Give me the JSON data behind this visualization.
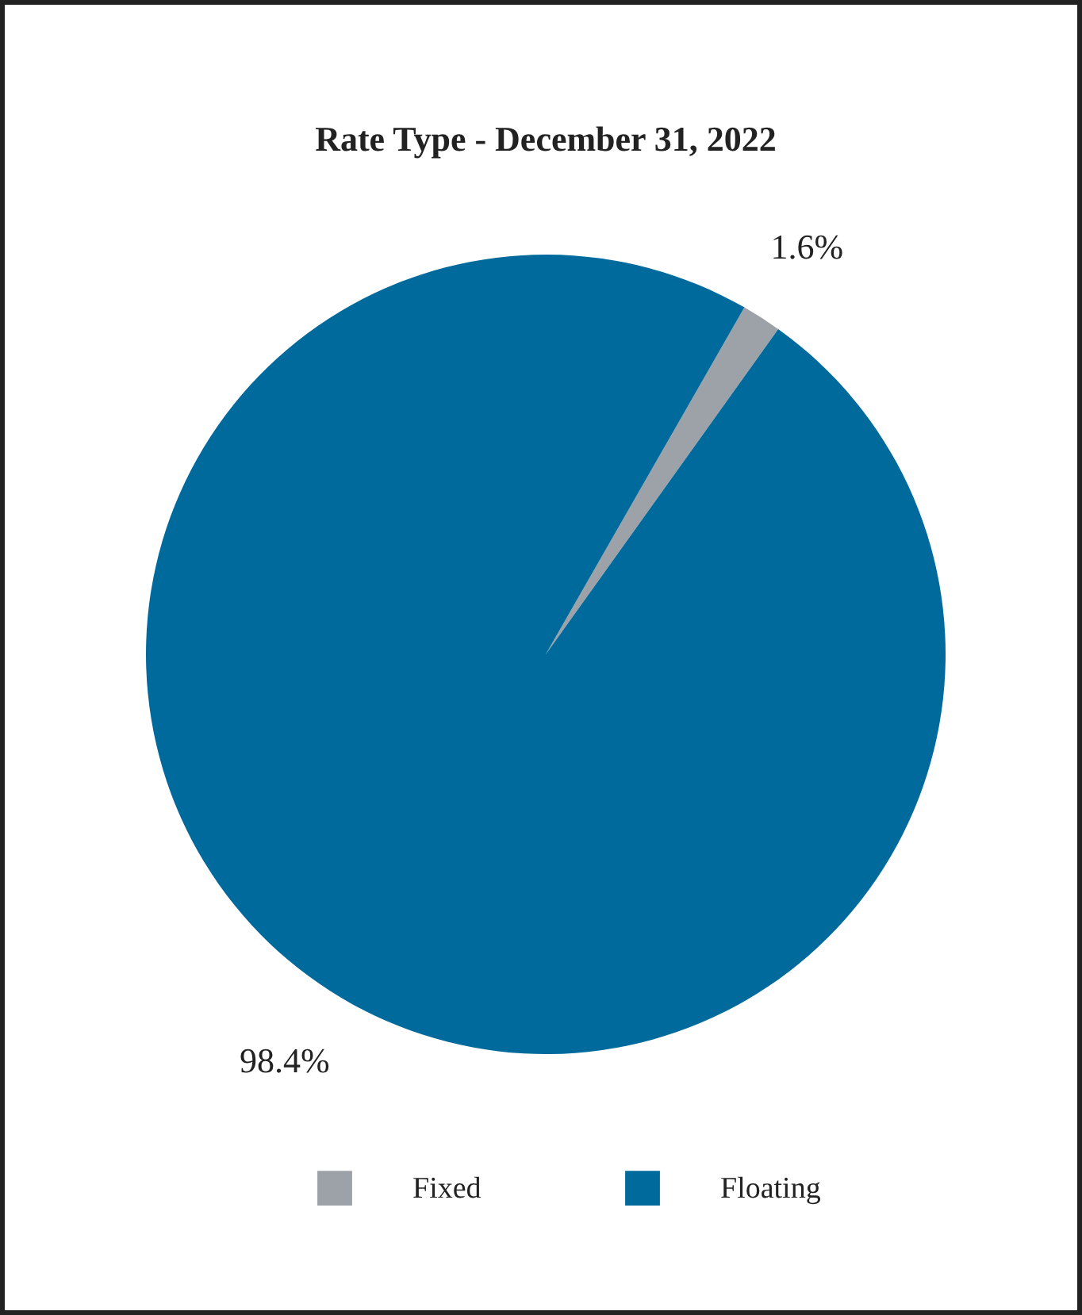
{
  "chart_data": {
    "type": "pie",
    "title": "Rate Type - December 31, 2022",
    "categories": [
      "Fixed",
      "Floating"
    ],
    "values": [
      1.6,
      98.4
    ],
    "colors": [
      "#9da2a8",
      "#006a9c"
    ],
    "value_labels": [
      "1.6%",
      "98.4%"
    ],
    "legend": "bottom"
  }
}
